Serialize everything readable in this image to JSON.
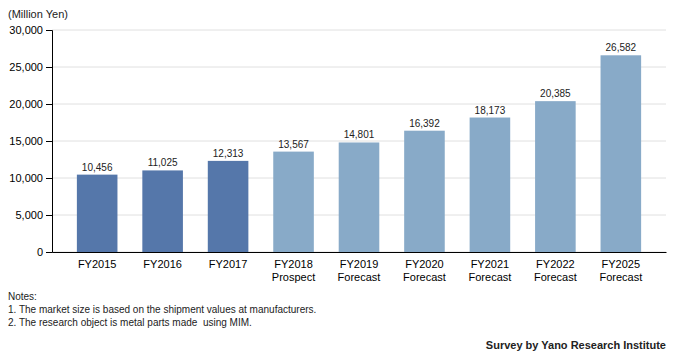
{
  "chart_data": {
    "type": "bar",
    "categories": [
      "FY2015",
      "FY2016",
      "FY2017",
      "FY2018\nProspect",
      "FY2019\nForecast",
      "FY2020\nForecast",
      "FY2021\nForecast",
      "FY2022\nForecast",
      "FY2025\nForecast"
    ],
    "values": [
      10456,
      11025,
      12313,
      13567,
      14801,
      16392,
      18173,
      20385,
      26582
    ],
    "value_labels": [
      "10,456",
      "11,025",
      "12,313",
      "13,567",
      "14,801",
      "16,392",
      "18,173",
      "20,385",
      "26,582"
    ],
    "data_labels": true,
    "colors": [
      "#5577aa",
      "#5577aa",
      "#5577aa",
      "#88aac8",
      "#88aac8",
      "#88aac8",
      "#88aac8",
      "#88aac8",
      "#88aac8"
    ],
    "ylabel": "(Million Yen)",
    "ylim": [
      0,
      30000
    ],
    "yticks": [
      0,
      {
        "value": 5000,
        "label": "5,000"
      },
      {
        "value": 10000,
        "label": "10,000"
      },
      {
        "value": 15000,
        "label": "15,000"
      },
      {
        "value": 20000,
        "label": "20,000"
      },
      {
        "value": 25000,
        "label": "25,000"
      },
      {
        "value": 30000,
        "label": "30,000"
      }
    ],
    "grid": true,
    "notes": [
      "Notes:",
      "1. The market size is based on the shipment values at manufacturers.",
      "2. The research object is metal parts made  using MIM."
    ],
    "source": "Survey by Yano Research Institute"
  }
}
